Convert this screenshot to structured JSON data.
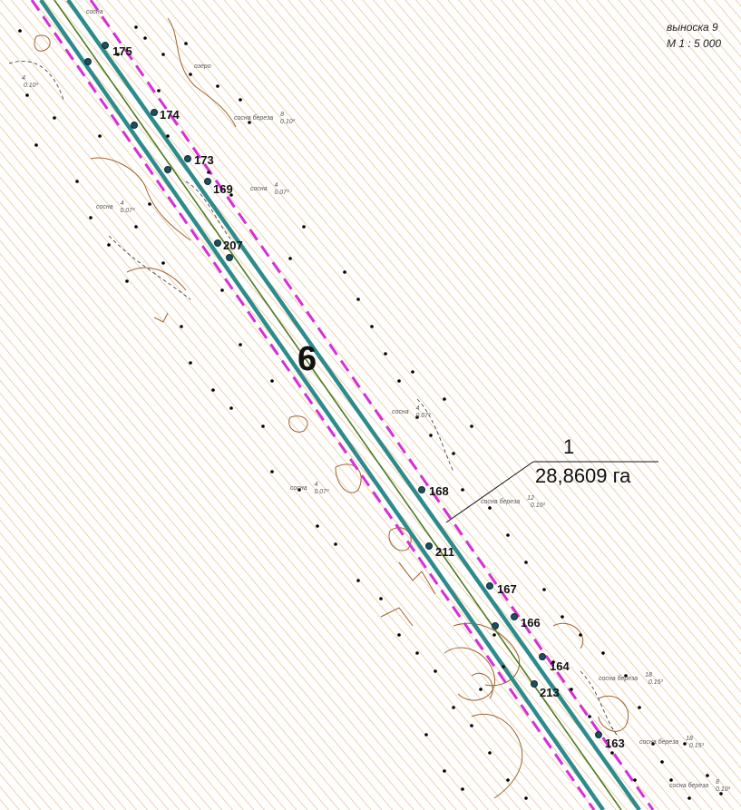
{
  "map": {
    "callout_title": "выноска 9",
    "scale": "М 1 : 5 000",
    "section_number": "6",
    "plot": {
      "number": "1",
      "area": "28,8609 га"
    },
    "points": [
      "175",
      "174",
      "173",
      "169",
      "207",
      "168",
      "211",
      "167",
      "166",
      "164",
      "213",
      "163"
    ],
    "tree_labels": [
      {
        "species": "сосна"
      },
      {
        "species": "сосна береза",
        "top": "8",
        "bottom": "0.10³"
      },
      {
        "species": "сосна",
        "top": "4",
        "bottom": "0.07³"
      },
      {
        "species": "сосна",
        "top": "4",
        "bottom": "0.07³"
      },
      {
        "species": "озеро"
      },
      {
        "species": "сосна",
        "top": "4",
        "bottom": "0.07³"
      },
      {
        "species": "сосна",
        "top": "4",
        "bottom": "0.07³"
      },
      {
        "species": "сосна береза",
        "top": "12",
        "bottom": "0.10³"
      },
      {
        "species": "сосна береза",
        "top": "18",
        "bottom": "0.15³"
      },
      {
        "species": "сосна береза",
        "top": "18",
        "bottom": "0.15³"
      },
      {
        "species": "сосна береза",
        "top": "8",
        "bottom": "0.10³"
      },
      {
        "top": "4",
        "bottom": "0.10³"
      }
    ],
    "colors": {
      "hatch": "#e8c79a",
      "corridor_border": "#2e8b8b",
      "axis": "#4d7a1f",
      "protection_zone": "#d62fd6",
      "contour": "#a0622d"
    }
  }
}
